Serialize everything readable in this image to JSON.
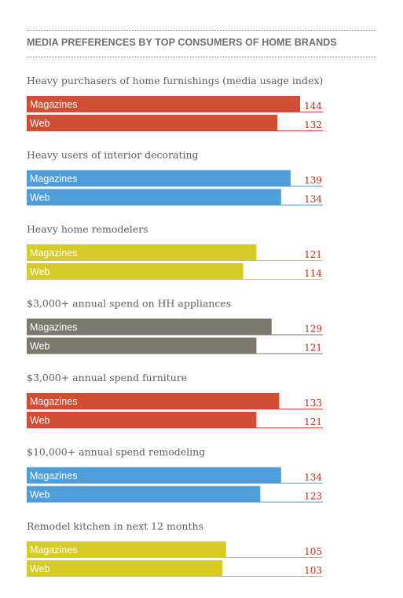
{
  "title": "MEDIA PREFERENCES BY TOP CONSUMERS OF HOME BRANDS",
  "colors": {
    "red": "#d24d33",
    "blue": "#4f9ed9",
    "yellow": "#d6cb2a",
    "gray": "#7d786c",
    "value_red": "#b5301d"
  },
  "chart_data": {
    "type": "bar",
    "orientation": "horizontal",
    "title": "MEDIA PREFERENCES BY TOP CONSUMERS OF HOME BRANDS",
    "series_labels": [
      "Magazines",
      "Web"
    ],
    "xlim": [
      0,
      150
    ],
    "groups": [
      {
        "title": "Heavy purchasers of home furnishings (media usage index)",
        "color": "red",
        "values": [
          144,
          132
        ]
      },
      {
        "title": "Heavy users of interior decorating",
        "color": "blue",
        "values": [
          139,
          134
        ]
      },
      {
        "title": "Heavy home remodelers",
        "color": "yellow",
        "values": [
          121,
          114
        ]
      },
      {
        "title": "$3,000+ annual spend on HH appliances",
        "color": "gray",
        "values": [
          129,
          121
        ]
      },
      {
        "title": "$3,000+ annual spend furniture",
        "color": "red",
        "values": [
          133,
          121
        ]
      },
      {
        "title": "$10,000+ annual spend remodeling",
        "color": "blue",
        "values": [
          134,
          123
        ]
      },
      {
        "title": "Remodel kitchen in next 12 months",
        "color": "yellow",
        "values": [
          105,
          103
        ]
      }
    ]
  }
}
